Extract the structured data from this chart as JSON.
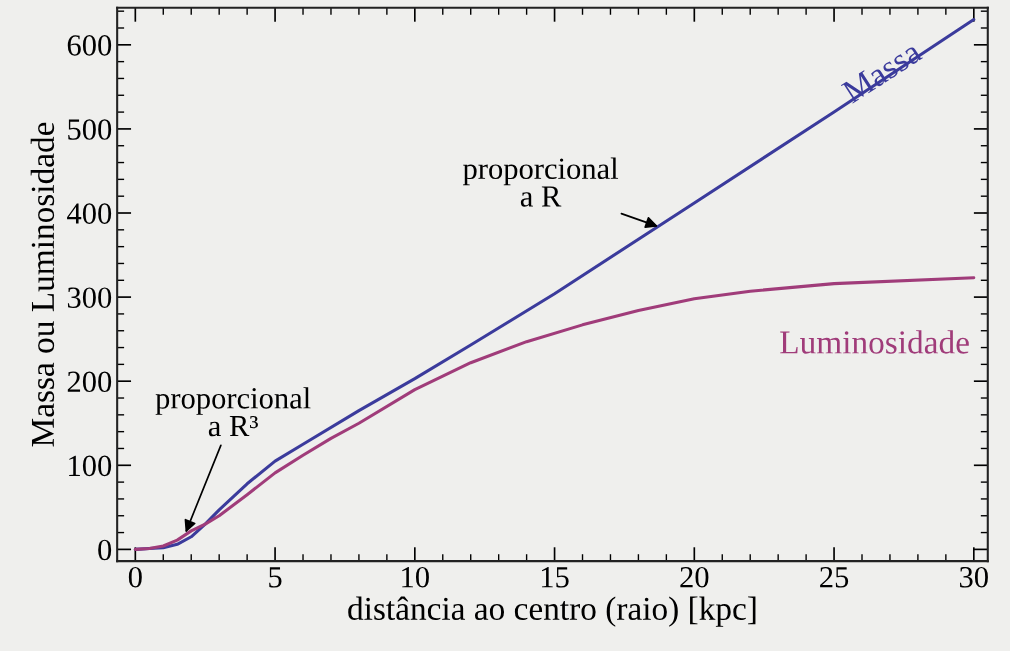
{
  "chart_data": {
    "type": "line",
    "xlabel": "distância ao centro (raio) [kpc]",
    "ylabel": "Massa ou Luminosidade",
    "xlim": [
      -0.65,
      30.5
    ],
    "ylim": [
      -14,
      644
    ],
    "xticks": [
      0,
      5,
      10,
      15,
      20,
      25,
      30
    ],
    "yticks": [
      0,
      100,
      200,
      300,
      400,
      500,
      600
    ],
    "grid": false,
    "legend": false,
    "line_style": "solid",
    "marker": "none",
    "series": [
      {
        "name": "Massa",
        "color": "#3b3b9c",
        "x": [
          0,
          0.5,
          1,
          1.5,
          2,
          2.5,
          3,
          4,
          5,
          6,
          8,
          10,
          12,
          15,
          20,
          25,
          30
        ],
        "values": [
          0,
          1,
          2,
          6,
          15,
          30,
          47,
          78,
          105,
          125,
          165,
          203,
          243,
          304,
          412,
          520,
          630
        ]
      },
      {
        "name": "Luminosidade",
        "color": "#a03c7a",
        "x": [
          0,
          0.5,
          1,
          1.5,
          2,
          2.5,
          3,
          4,
          5,
          6,
          7,
          8,
          10,
          12,
          14,
          16,
          18,
          20,
          22,
          25,
          30
        ],
        "values": [
          0,
          1,
          4,
          11,
          22,
          30,
          40,
          65,
          91,
          112,
          132,
          150,
          190,
          222,
          247,
          267,
          284,
          298,
          307,
          316,
          323
        ]
      }
    ],
    "annotations": [
      {
        "text": "proporcional\na R",
        "x": 18.7,
        "y": 384
      },
      {
        "text": "proporcional\na R³",
        "x": 1.8,
        "y": 20
      }
    ]
  }
}
